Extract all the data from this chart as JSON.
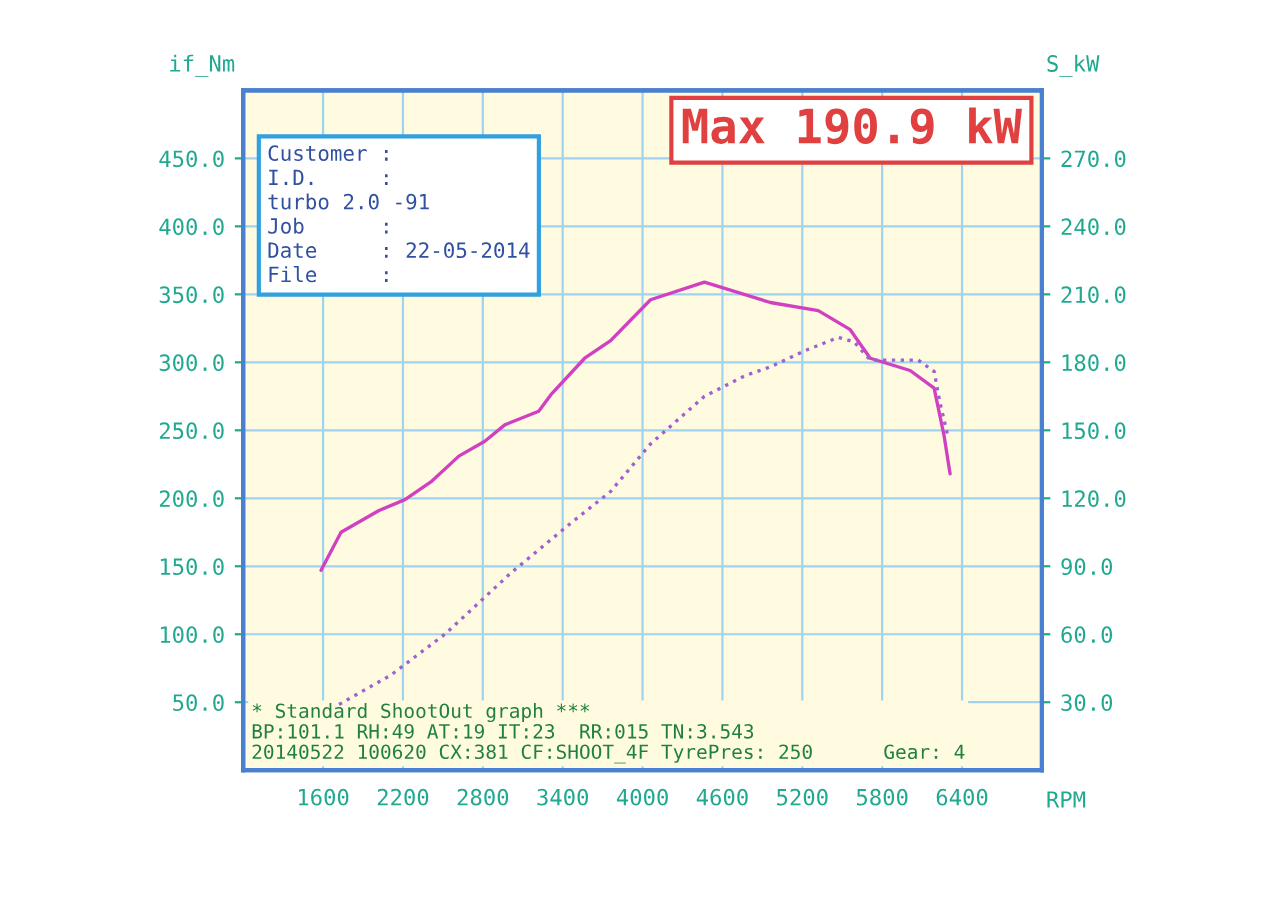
{
  "chart_data": {
    "type": "line",
    "title": "Max 190.9 kW",
    "xlabel": "RPM",
    "ylabel": "if_Nm",
    "y2label": "S_kW",
    "xlim": [
      1000,
      7000
    ],
    "xticks": [
      1600,
      2200,
      2800,
      3400,
      4000,
      4600,
      5200,
      5800,
      6400
    ],
    "ylim": [
      0,
      500
    ],
    "yticks": [
      {
        "value": 50,
        "label": "50.0"
      },
      {
        "value": 100,
        "label": "100.0"
      },
      {
        "value": 150,
        "label": "150.0"
      },
      {
        "value": 200,
        "label": "200.0"
      },
      {
        "value": 250,
        "label": "250.0"
      },
      {
        "value": 300,
        "label": "300.0"
      },
      {
        "value": 350,
        "label": "350.0"
      },
      {
        "value": 400,
        "label": "400.0"
      },
      {
        "value": 450,
        "label": "450.0"
      }
    ],
    "y2lim": [
      0,
      300
    ],
    "y2ticks": [
      {
        "value": 30,
        "label": "30.0"
      },
      {
        "value": 60,
        "label": "60.0"
      },
      {
        "value": 90,
        "label": "90.0"
      },
      {
        "value": 120,
        "label": "120.0"
      },
      {
        "value": 150,
        "label": "150.0"
      },
      {
        "value": 180,
        "label": "180.0"
      },
      {
        "value": 210,
        "label": "210.0"
      },
      {
        "value": 240,
        "label": "240.0"
      },
      {
        "value": 270,
        "label": "270.0"
      }
    ],
    "grid": true,
    "marker": "none",
    "series": [
      {
        "color": "#d040c0",
        "line_style": "solid",
        "x": [
          1585,
          1735,
          2020,
          2215,
          2410,
          2620,
          2815,
          2965,
          3220,
          3310,
          3565,
          3760,
          4060,
          4465,
          4960,
          5320,
          5560,
          5710,
          6010,
          6190,
          6265,
          6310
        ],
        "values": [
          147,
          175,
          191,
          199,
          212,
          231,
          242,
          254,
          264,
          276,
          303,
          316,
          346,
          359,
          344,
          338,
          324,
          303,
          294,
          281,
          246,
          218
        ]
      },
      {
        "color": "#a060d0",
        "line_style": "dotted",
        "axis": "y2",
        "x": [
          1720,
          2110,
          2515,
          3010,
          3460,
          3760,
          4060,
          4465,
          4765,
          4960,
          5215,
          5470,
          5590,
          5710,
          6070,
          6190,
          6235,
          6295
        ],
        "values": [
          29,
          42,
          60,
          87,
          109,
          123,
          144,
          165,
          174,
          178,
          185,
          191,
          189,
          181,
          181,
          176,
          162,
          147
        ]
      }
    ],
    "annotations": [
      "Customer :",
      "I.D.     :",
      "turbo 2.0 -91",
      "Job      :",
      "Date     : 22-05-2014",
      "File     :",
      "* Standard ShootOut graph ***",
      "BP:101.1 RH:49 AT:19 IT:23  RR:015 TN:3.543",
      "20140522 100620 CX:381 CF:SHOOT_4F TyrePres: 250      Gear: 4"
    ]
  }
}
